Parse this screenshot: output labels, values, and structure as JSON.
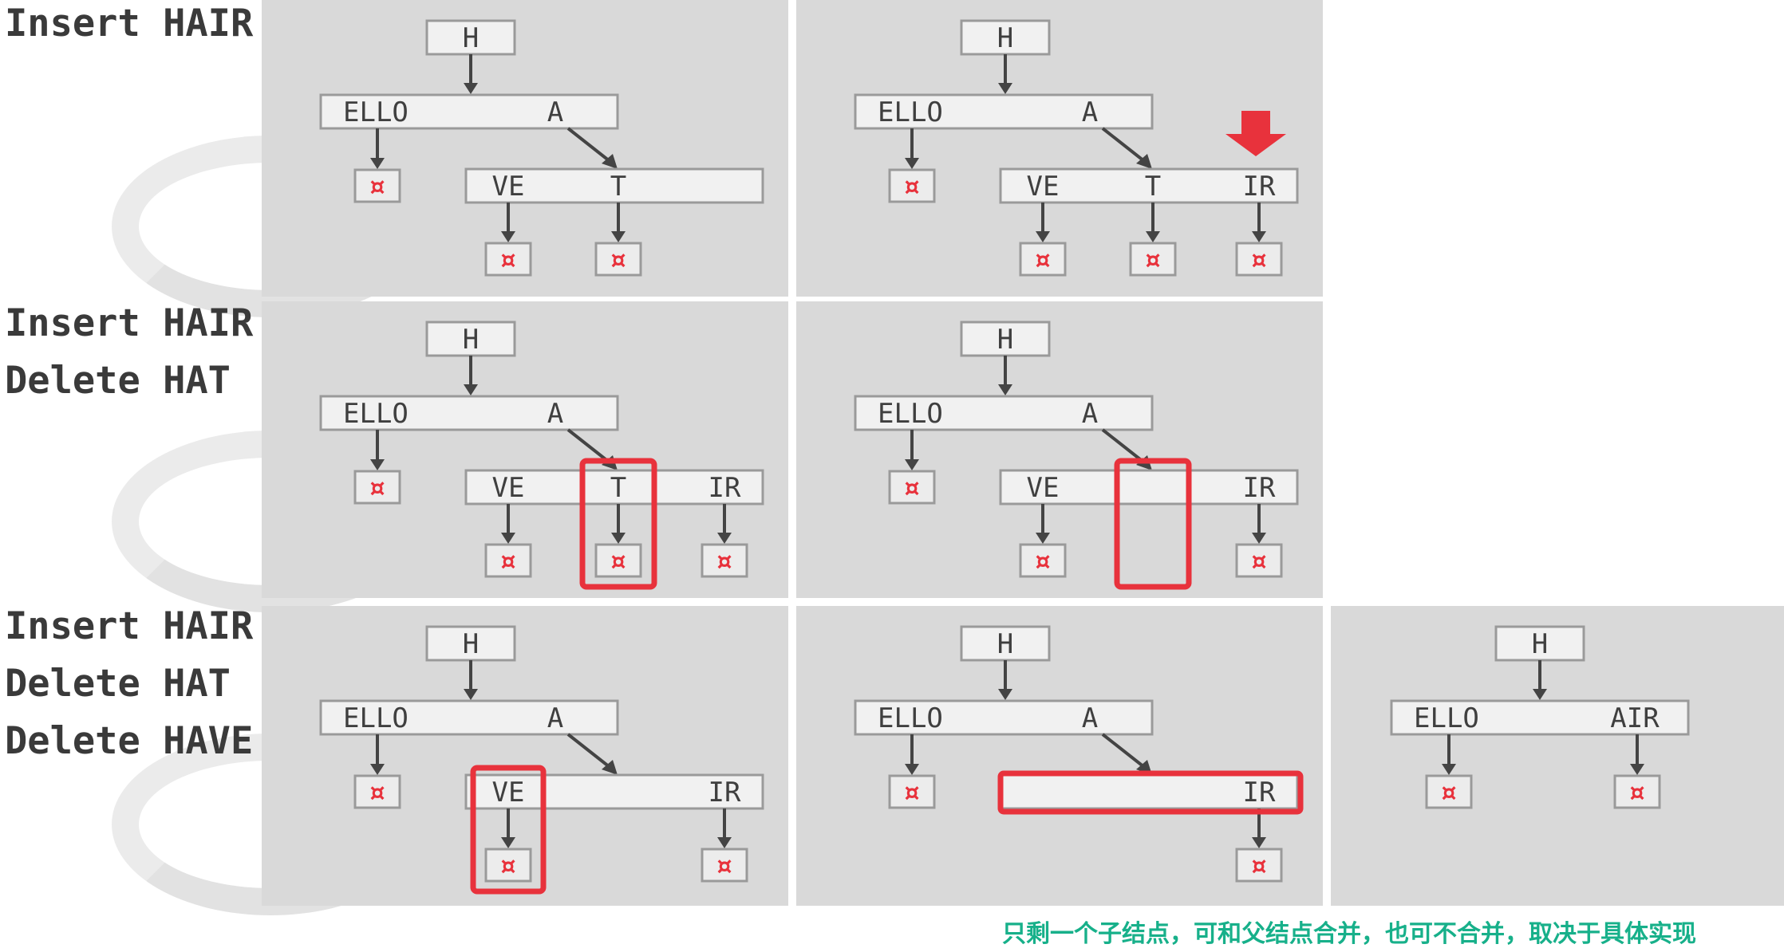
{
  "rows": [
    {
      "labels": [
        "Insert HAIR"
      ]
    },
    {
      "labels": [
        "Insert HAIR",
        "Delete HAT"
      ]
    },
    {
      "labels": [
        "Insert HAIR",
        "Delete HAT",
        "Delete HAVE"
      ]
    }
  ],
  "node": {
    "root": "H",
    "ello": "ELLO",
    "a": "A",
    "ve": "VE",
    "t": "T",
    "ir": "IR",
    "air": "AIR",
    "leaf_symbol": "¤"
  },
  "colors": {
    "highlight": "#e8323c",
    "caption": "#17b08a",
    "panel": "#d9d9d9"
  },
  "icons": {
    "insert_marker": "down-arrow-icon"
  },
  "caption": "只剩一个子结点，可和父结点合并，也可不合并，取决于具体实现"
}
